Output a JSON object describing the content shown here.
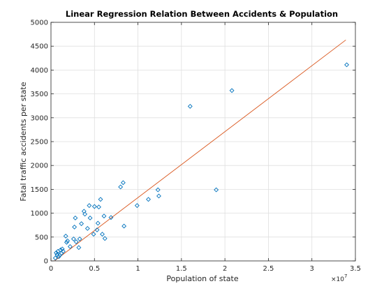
{
  "chart_data": {
    "type": "scatter",
    "title": "Linear Regression Relation Between Accidents & Population",
    "xlabel": "Population of state",
    "ylabel": "Fatal traffic accidents per state",
    "x_exponent_label": "×10",
    "x_exponent_power": "7",
    "xlim": [
      0,
      35000000
    ],
    "ylim": [
      0,
      5000
    ],
    "x_ticks": [
      0,
      5000000,
      10000000,
      15000000,
      20000000,
      25000000,
      30000000,
      35000000
    ],
    "x_tick_labels": [
      "0",
      "0.5",
      "1",
      "1.5",
      "2",
      "2.5",
      "3",
      "3.5"
    ],
    "y_ticks": [
      0,
      500,
      1000,
      1500,
      2000,
      2500,
      3000,
      3500,
      4000,
      4500,
      5000
    ],
    "y_tick_labels": [
      "0",
      "500",
      "1000",
      "1500",
      "2000",
      "2500",
      "3000",
      "3500",
      "4000",
      "4500",
      "5000"
    ],
    "grid": true,
    "colors": {
      "points": "#0072bd",
      "fit_line": "#d95319",
      "grid": "#dfdfdf",
      "axes": "#262626"
    },
    "series": [
      {
        "points": [
          [
            500000,
            60
          ],
          [
            600000,
            170
          ],
          [
            700000,
            130
          ],
          [
            800000,
            200
          ],
          [
            900000,
            90
          ],
          [
            1000000,
            120
          ],
          [
            1100000,
            230
          ],
          [
            1200000,
            160
          ],
          [
            1300000,
            250
          ],
          [
            1400000,
            200
          ],
          [
            1700000,
            520
          ],
          [
            1800000,
            390
          ],
          [
            1900000,
            420
          ],
          [
            2200000,
            300
          ],
          [
            2600000,
            460
          ],
          [
            2700000,
            710
          ],
          [
            2800000,
            900
          ],
          [
            2900000,
            400
          ],
          [
            3200000,
            280
          ],
          [
            3300000,
            460
          ],
          [
            3500000,
            780
          ],
          [
            3800000,
            1040
          ],
          [
            3900000,
            980
          ],
          [
            4200000,
            680
          ],
          [
            4400000,
            1160
          ],
          [
            4500000,
            900
          ],
          [
            4900000,
            560
          ],
          [
            5000000,
            1140
          ],
          [
            5300000,
            650
          ],
          [
            5400000,
            790
          ],
          [
            5500000,
            1130
          ],
          [
            5700000,
            1290
          ],
          [
            5900000,
            560
          ],
          [
            6100000,
            940
          ],
          [
            6200000,
            470
          ],
          [
            6900000,
            910
          ],
          [
            8000000,
            1550
          ],
          [
            8300000,
            1640
          ],
          [
            8400000,
            730
          ],
          [
            9900000,
            1160
          ],
          [
            11200000,
            1290
          ],
          [
            12300000,
            1490
          ],
          [
            12400000,
            1360
          ],
          [
            16000000,
            3240
          ],
          [
            19000000,
            1490
          ],
          [
            20800000,
            3570
          ],
          [
            34000000,
            4110
          ]
        ]
      },
      {
        "type": "line",
        "x": [
          400000,
          33900000
        ],
        "y": [
          0,
          4630
        ]
      }
    ]
  }
}
